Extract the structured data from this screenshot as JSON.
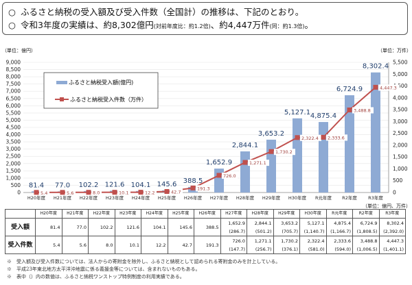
{
  "header": {
    "bullet": "○",
    "line1": "ふるさと納税の受入額及び受入件数（全国計）の推移は、下記のとおり。",
    "line2_main": "令和3年度の実績は、約8,302億円",
    "line2_note1": "(対前年度比：約1.2倍)",
    "line2_mid": "、約4,447万件",
    "line2_note2": "(同：約1.3倍)",
    "line2_end": "。"
  },
  "chart_data": {
    "type": "bar+line",
    "categories": [
      "H20年度",
      "H21年度",
      "H22年度",
      "H23年度",
      "H24年度",
      "H25年度",
      "H26年度",
      "H27年度",
      "H28年度",
      "H29年度",
      "H30年度",
      "R元年度",
      "R2年度",
      "R3年度"
    ],
    "series": [
      {
        "name": "ふるさと納税受入額(億円)",
        "type": "bar",
        "axis": "left",
        "color": "#8eaad4",
        "values": [
          81.4,
          77.0,
          102.2,
          121.6,
          104.1,
          145.6,
          388.5,
          1652.9,
          2844.1,
          3653.2,
          5127.1,
          4875.4,
          6724.9,
          8302.4
        ],
        "labels": [
          "81.4",
          "77.0",
          "102.2",
          "121.6",
          "104.1",
          "145.6",
          "388.5",
          "1,652.9",
          "2,844.1",
          "3,653.2",
          "5,127.1",
          "4,875.4",
          "6,724.9",
          "8,302.4"
        ]
      },
      {
        "name": "ふるさと納税受入件数（万件）",
        "type": "line",
        "axis": "right",
        "color": "#c0504d",
        "values": [
          5.4,
          5.6,
          8.0,
          10.1,
          12.2,
          42.7,
          191.3,
          726.0,
          1271.1,
          1730.2,
          2322.4,
          2333.6,
          3488.8,
          4447.3
        ],
        "labels": [
          "5.4",
          "5.6",
          "8.0",
          "10.1",
          "12.2",
          "42.7",
          "191.3",
          "726.0",
          "1,271.1",
          "1,730.2",
          "2,322.4",
          "2,333.6",
          "3,488.8",
          "4,447.3"
        ]
      }
    ],
    "yleft": {
      "label": "（単位：億円）",
      "range": [
        0,
        9000
      ],
      "step": 500
    },
    "yright": {
      "label": "（単位：万件）",
      "range": [
        0,
        5500
      ],
      "step": 500
    },
    "legend": "top-left",
    "grid": true
  },
  "table": {
    "unit": "（単位：億円、万件）",
    "headers": [
      "H20年度",
      "H21年度",
      "H22年度",
      "H23年度",
      "H24年度",
      "H25年度",
      "H26年度",
      "H27年度",
      "H28年度",
      "H29年度",
      "H30年度",
      "R元年度",
      "R2年度",
      "R3年度"
    ],
    "rows": [
      {
        "label": "受入額",
        "values": [
          "81.4",
          "77.0",
          "102.2",
          "121.6",
          "104.1",
          "145.6",
          "388.5",
          "1,652.9",
          "2,844.1",
          "3,653.2",
          "5,127.1",
          "4,875.4",
          "6,724.9",
          "8,302.4"
        ],
        "sub": [
          "",
          "",
          "",
          "",
          "",
          "",
          "",
          "(286.7)",
          "(501.2)",
          "(705.7)",
          "(1,140.7)",
          "(1,166.7)",
          "(1,808.5)",
          "(2,392.0)"
        ]
      },
      {
        "label": "受入件数",
        "values": [
          "5.4",
          "5.6",
          "8.0",
          "10.1",
          "12.2",
          "42.7",
          "191.3",
          "726.0",
          "1,271.1",
          "1,730.2",
          "2,322.4",
          "2,333.6",
          "3,488.8",
          "4,447.3"
        ],
        "sub": [
          "",
          "",
          "",
          "",
          "",
          "",
          "",
          "(147.7)",
          "(256.7)",
          "(376.1)",
          "(581.0)",
          "(594.0)",
          "(1,006.5)",
          "(1,401.1)"
        ]
      }
    ]
  },
  "notes": [
    "※　受入額及び受入件数については、法人からの寄附金を除外し、ふるさと納税として認められる寄附金のみを計上している。",
    "※　平成23年東北地方太平洋沖地震に係る義援金等については、含まれないものもある。",
    "※　表中（）内の数値は、ふるさと納税ワンストップ特例制度の利用実績である。"
  ]
}
